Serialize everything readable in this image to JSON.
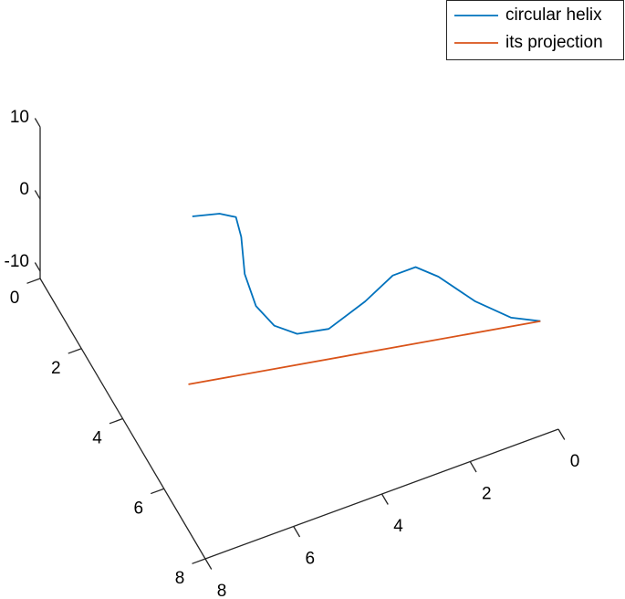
{
  "chart_data": {
    "type": "line3d",
    "series": [
      {
        "name": "circular helix",
        "color": "#0072BD",
        "x": [
          6.32,
          5.76,
          5.42,
          5.31,
          5.24,
          5.01,
          4.63,
          4.16,
          3.51,
          2.76,
          2.19,
          1.72,
          1.25,
          0.5,
          -0.25,
          -0.85
        ],
        "y": [
          3.78,
          3.9,
          3.97,
          3.99,
          4.01,
          4.06,
          4.14,
          4.24,
          4.38,
          4.54,
          4.66,
          4.76,
          4.86,
          5.02,
          5.18,
          5.31
        ],
        "z": [
          12.2,
          11.9,
          11.0,
          8.1,
          2.9,
          -1.8,
          -5.0,
          -6.7,
          -6.8,
          -3.9,
          -1.0,
          -0.4,
          -2.3,
          -6.6,
          -9.8,
          -11
        ]
      },
      {
        "name": "its projection",
        "color": "#D95319",
        "x": [
          6.4,
          -0.85
        ],
        "y": [
          3.76,
          5.31
        ],
        "z": [
          -11,
          -11
        ]
      }
    ],
    "xlim": [
      0,
      8
    ],
    "xticks": [
      0,
      2,
      4,
      6,
      8
    ],
    "ylim": [
      0,
      8
    ],
    "yticks": [
      0,
      2,
      4,
      6,
      8
    ],
    "zlim": [
      -11,
      10
    ],
    "zticks": [
      -10,
      0,
      10
    ],
    "legend": "top-right"
  }
}
